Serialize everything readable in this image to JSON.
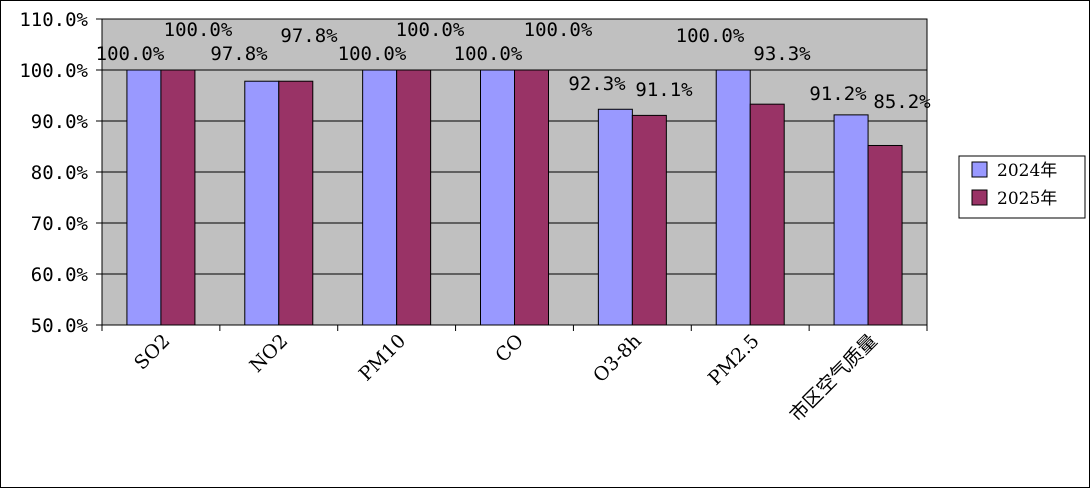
{
  "chart_data": {
    "type": "bar",
    "title": "",
    "xlabel": "",
    "ylabel": "",
    "ylim": [
      50,
      110
    ],
    "yticks": [
      50,
      60,
      70,
      80,
      90,
      100,
      110
    ],
    "ytick_labels": [
      "50.0%",
      "60.0%",
      "70.0%",
      "80.0%",
      "90.0%",
      "100.0%",
      "110.0%"
    ],
    "grid": true,
    "legend_position": "right",
    "plot_background": "#c0c0c0",
    "categories": [
      "SO2",
      "NO2",
      "PM10",
      "CO",
      "O3-8h",
      "PM2.5",
      "市区空气质量"
    ],
    "series": [
      {
        "name": "2024年",
        "color": "#9999ff",
        "values": [
          100.0,
          97.8,
          100.0,
          100.0,
          92.3,
          100.0,
          91.2
        ],
        "labels": [
          "100.0%",
          "97.8%",
          "100.0%",
          "100.0%",
          "92.3%",
          "100.0%",
          "91.2%"
        ]
      },
      {
        "name": "2025年",
        "color": "#993366",
        "values": [
          100.0,
          97.8,
          100.0,
          100.0,
          91.1,
          93.3,
          85.2
        ],
        "labels": [
          "100.0%",
          "97.8%",
          "100.0%",
          "100.0%",
          "91.1%",
          "93.3%",
          "85.2%"
        ]
      }
    ]
  }
}
